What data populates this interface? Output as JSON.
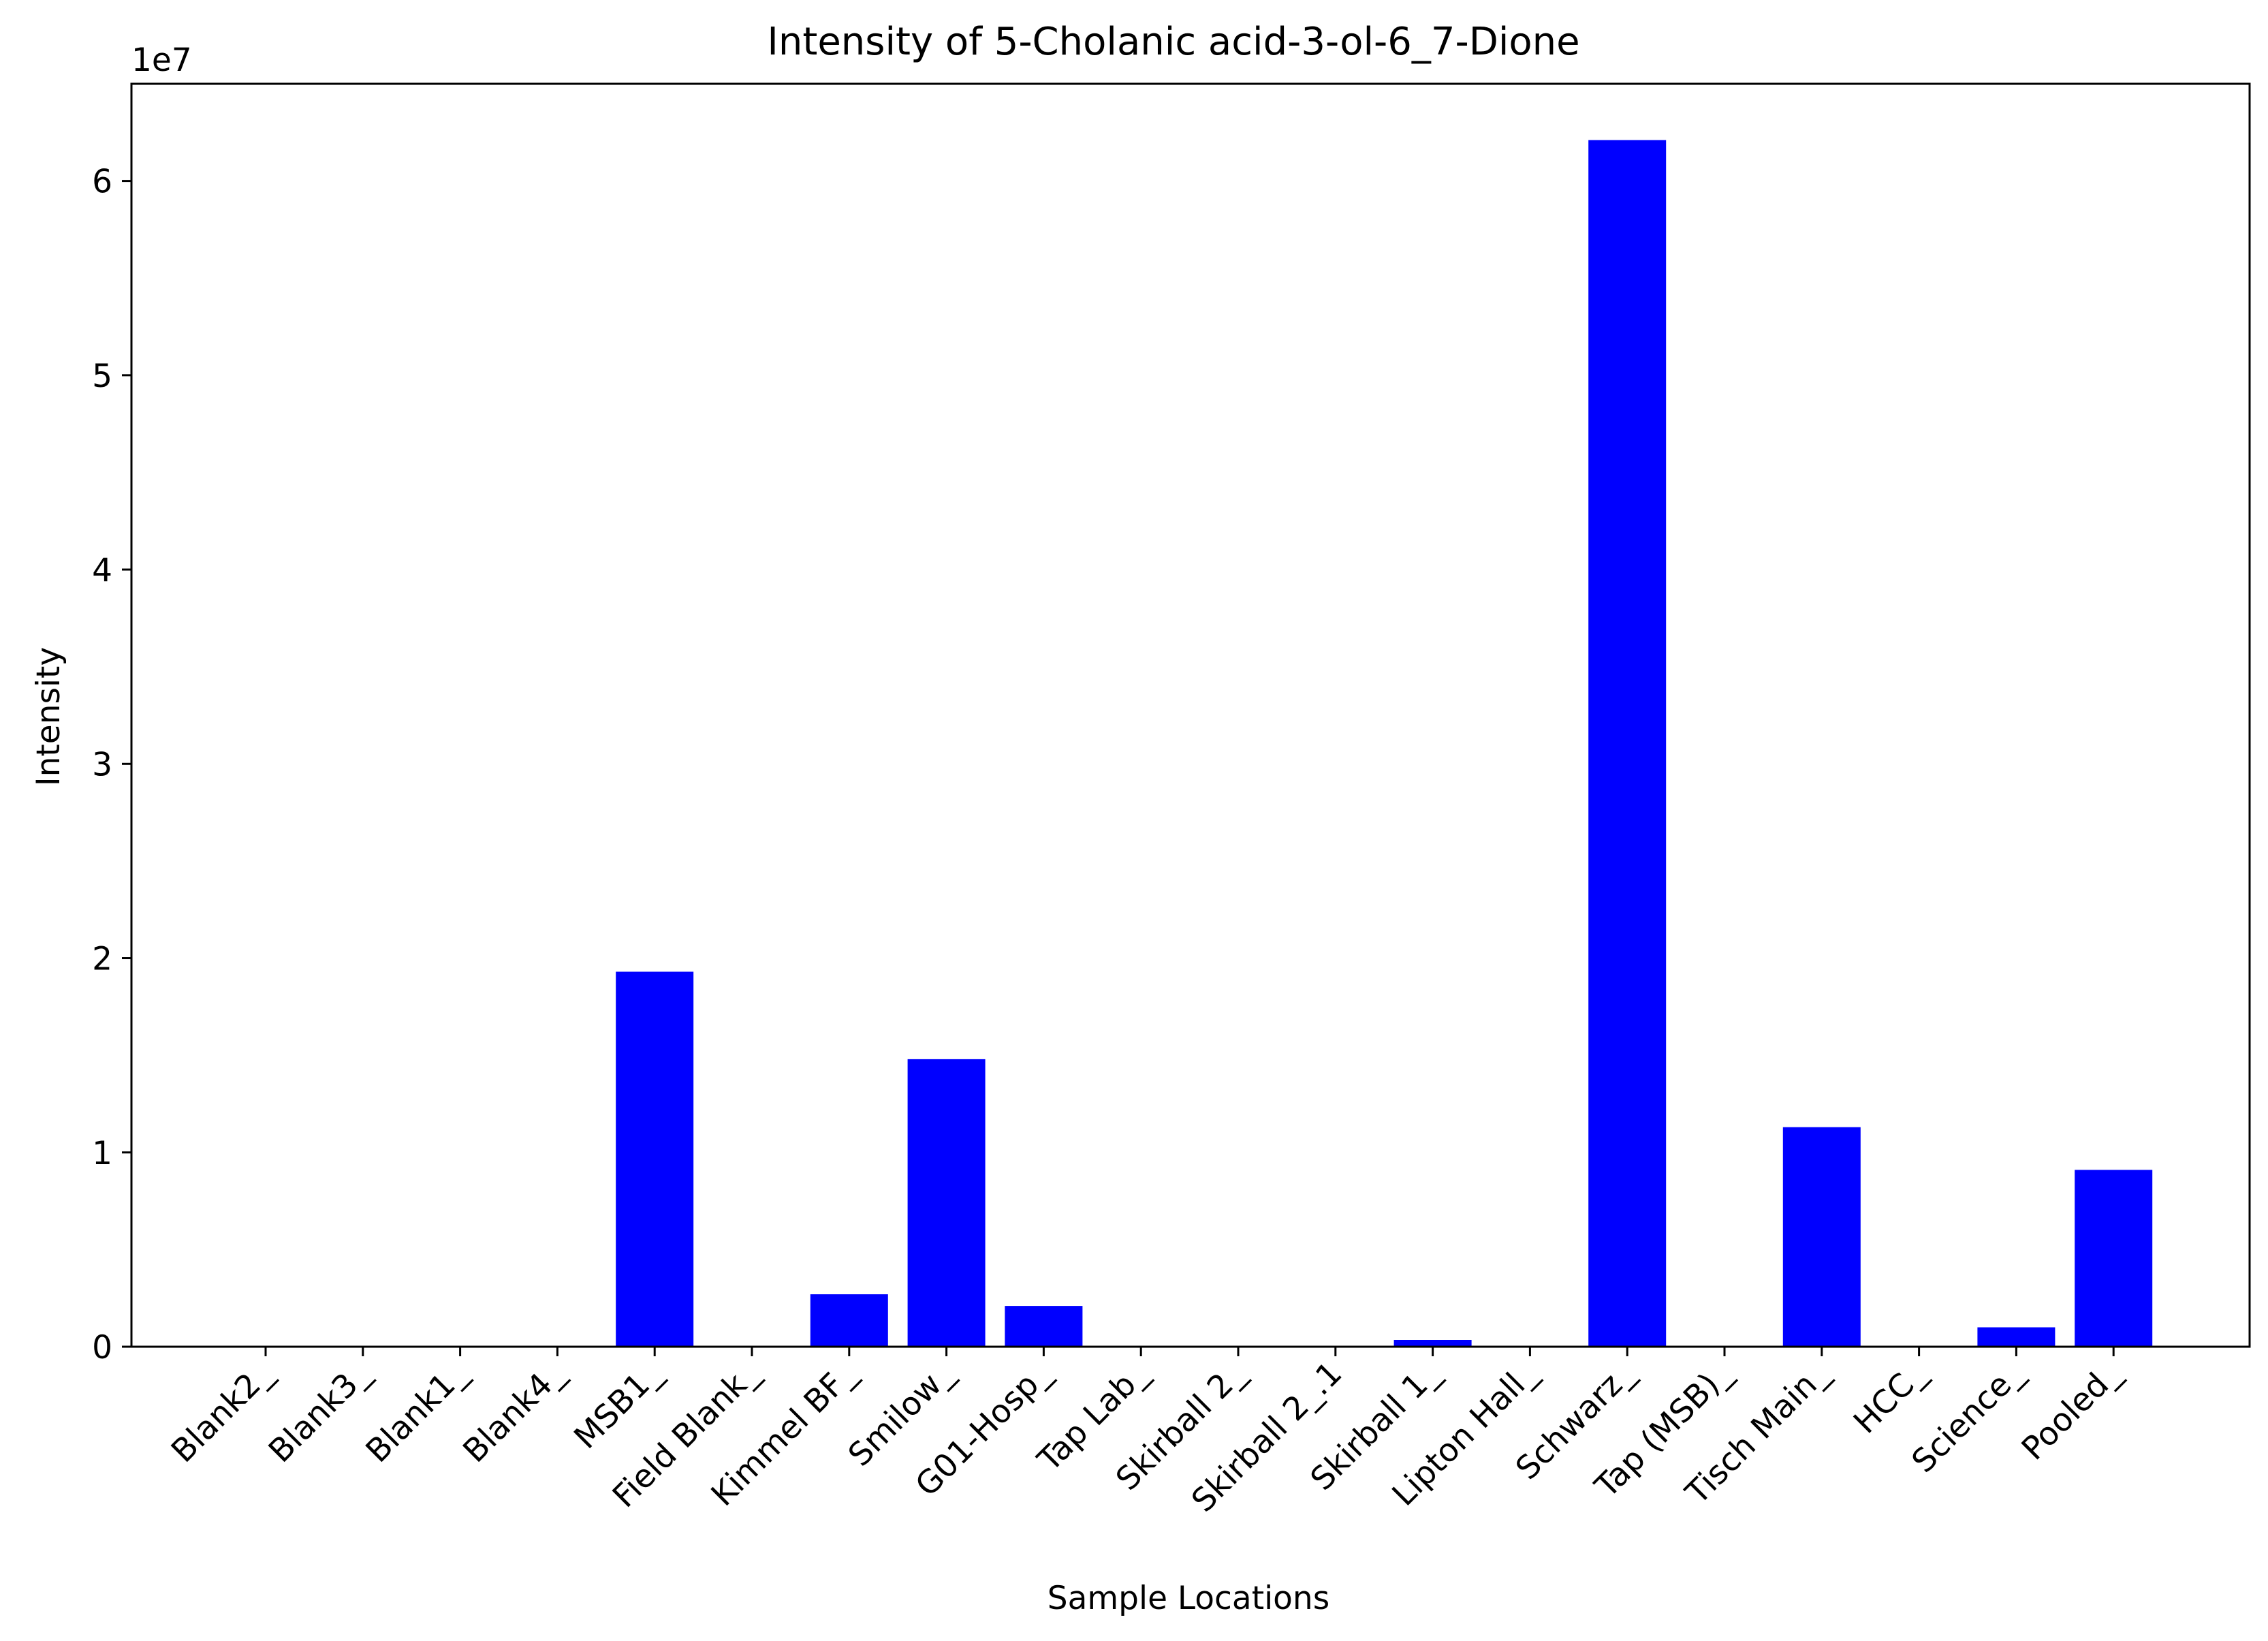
{
  "chart_data": {
    "type": "bar",
    "title": "Intensity of 5-Cholanic acid-3-ol-6_7-Dione",
    "xlabel": "Sample Locations",
    "ylabel": "Intensity",
    "offset_label": "1e7",
    "ylim": [
      0,
      6.5
    ],
    "yticks": [
      0,
      1,
      2,
      3,
      4,
      5,
      6
    ],
    "ytick_labels": [
      "0",
      "1",
      "2",
      "3",
      "4",
      "5",
      "6"
    ],
    "grid": false,
    "bar_color": "#0000ff",
    "categories": [
      "Blank2_",
      "Blank3_",
      "Blank1_",
      "Blank4_",
      "MSB1_",
      "Field Blank_",
      "Kimmel BF_",
      "Smilow_",
      "G01-Hosp_",
      "Tap Lab_",
      "Skirball 2_",
      "Skirball 2_.1",
      "Skirball 1_",
      "Lipton Hall_",
      "Schwarz_",
      "Tap (MSB)_",
      "Tisch Main_",
      "HCC_",
      "Science_",
      "Pooled_"
    ],
    "values": [
      0,
      0,
      0,
      0,
      1.93,
      0,
      0.27,
      1.48,
      0.21,
      0,
      0,
      0,
      0.035,
      0,
      6.21,
      0,
      1.13,
      0,
      0.1,
      0.91
    ]
  }
}
